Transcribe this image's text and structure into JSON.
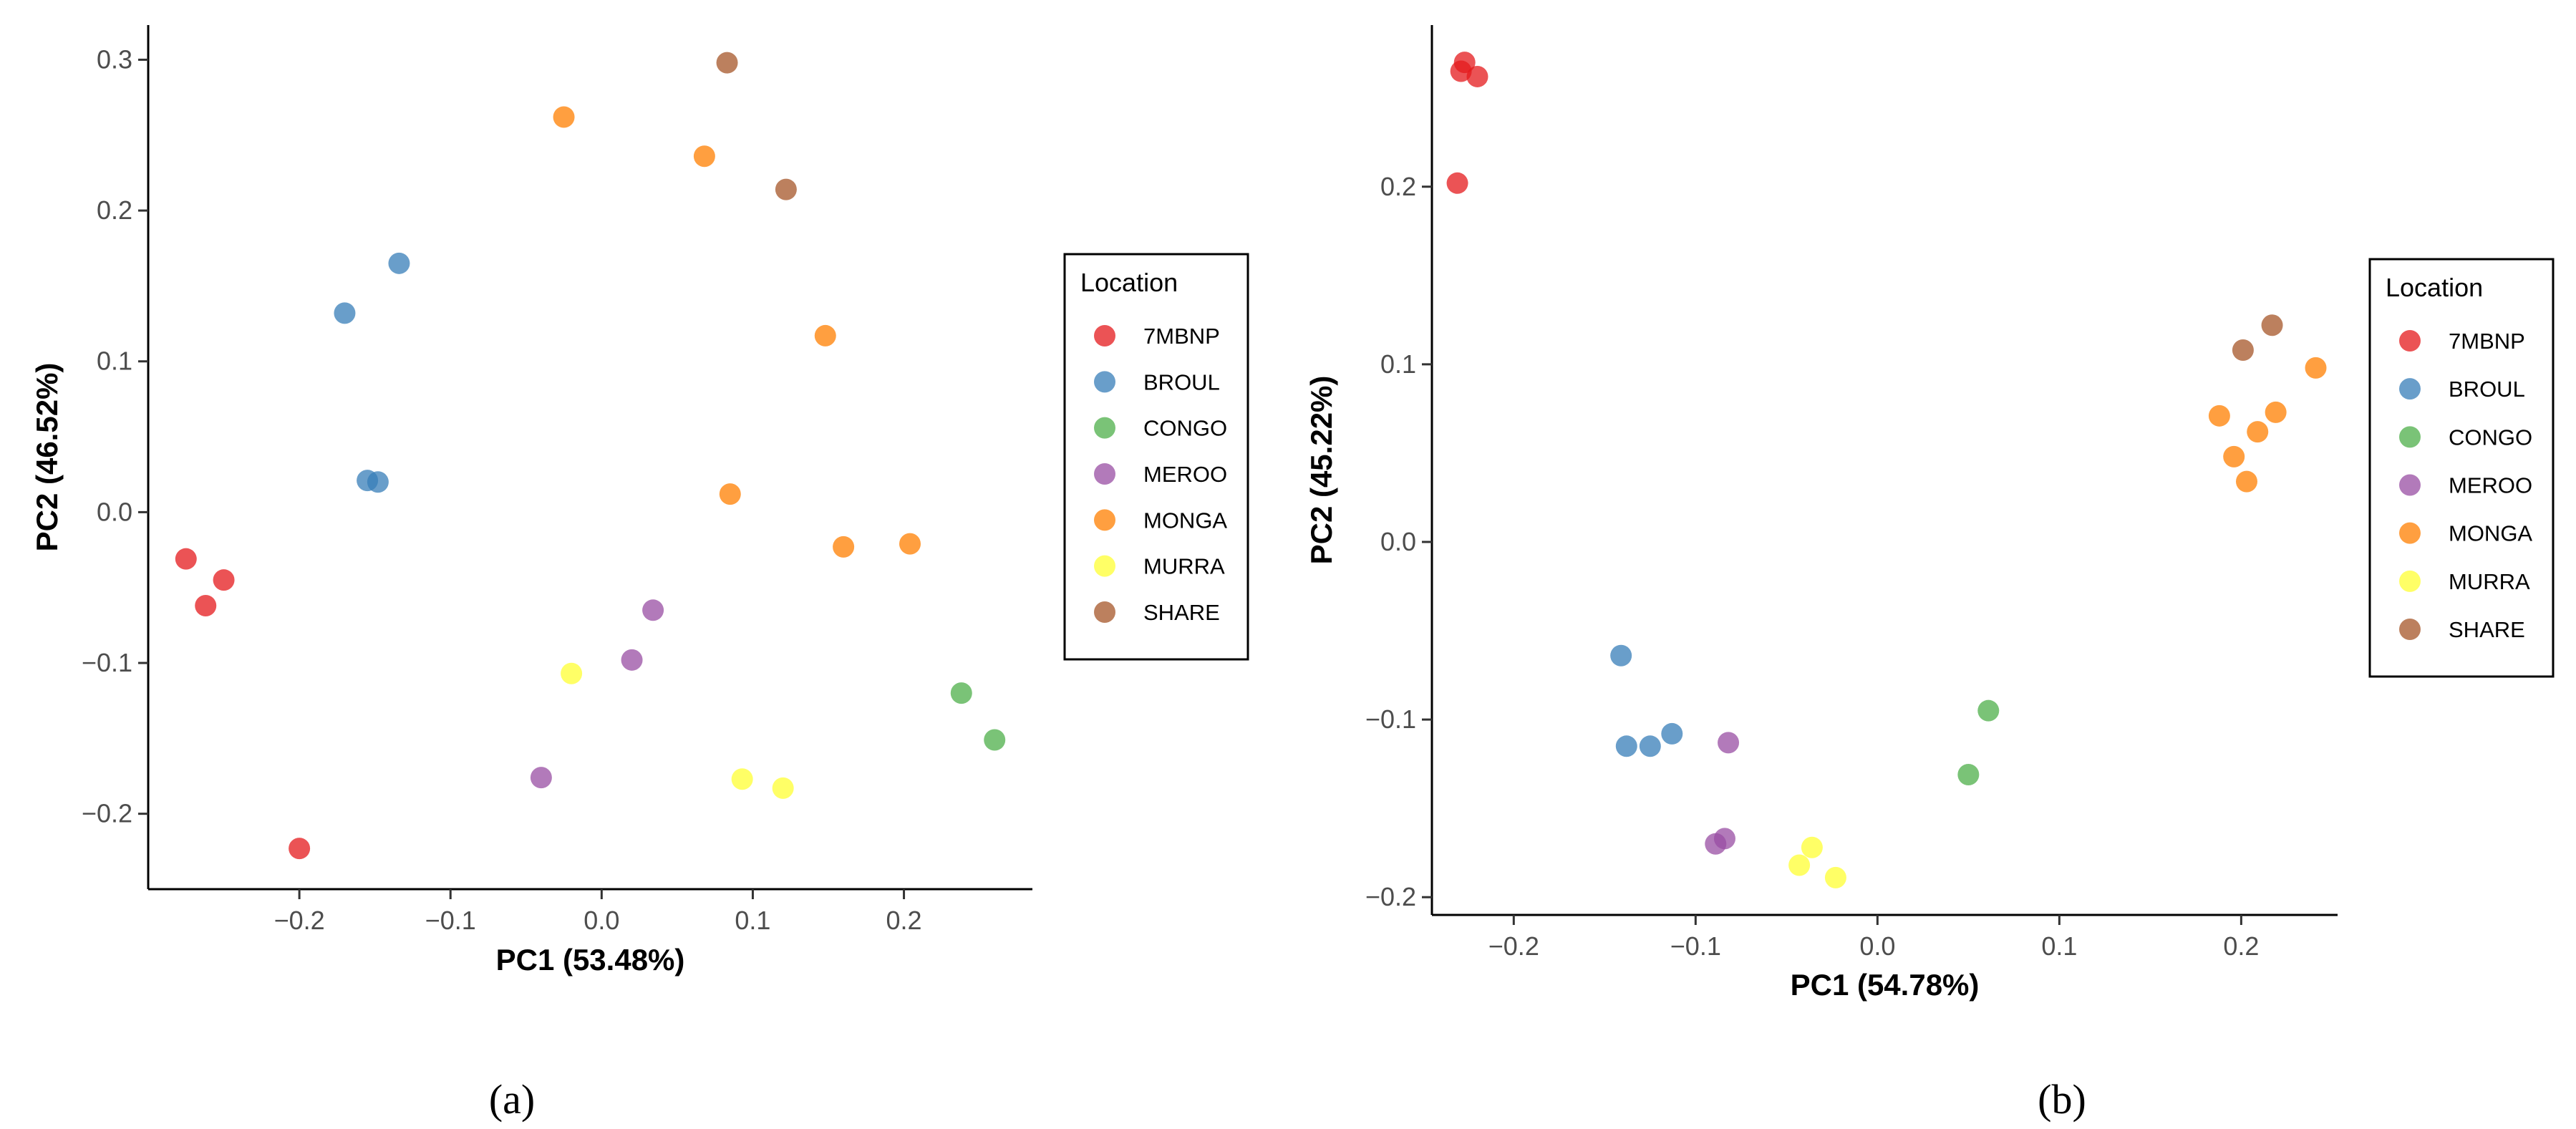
{
  "colors": {
    "7MBNP": "#e41a1c",
    "BROUL": "#377eb8",
    "CONGO": "#4daf4a",
    "MEROO": "#984ea3",
    "MONGA": "#ff7f00",
    "MURRA": "#ffff33",
    "SHARE": "#a65628"
  },
  "chart_data": [
    {
      "type": "scatter",
      "caption": "(a)",
      "xlabel": "PC1 (53.48%)",
      "ylabel": "PC2 (46.52%)",
      "xlim": [
        -0.3,
        0.285
      ],
      "ylim": [
        -0.25,
        0.323
      ],
      "xticks": [
        -0.2,
        -0.1,
        0.0,
        0.1,
        0.2
      ],
      "xtick_labels": [
        "−0.2",
        "−0.1",
        "0.0",
        "0.1",
        "0.2"
      ],
      "yticks": [
        -0.2,
        -0.1,
        0.0,
        0.1,
        0.2,
        0.3
      ],
      "ytick_labels": [
        "−0.2",
        "−0.1",
        "0.0",
        "0.1",
        "0.2",
        "0.3"
      ],
      "legend": {
        "title": "Location",
        "entries": [
          "7MBNP",
          "BROUL",
          "CONGO",
          "MEROO",
          "MONGA",
          "MURRA",
          "SHARE"
        ],
        "position": "right"
      },
      "series": [
        {
          "name": "7MBNP",
          "points": [
            [
              -0.275,
              -0.031
            ],
            [
              -0.25,
              -0.045
            ],
            [
              -0.262,
              -0.062
            ],
            [
              -0.2,
              -0.223
            ]
          ]
        },
        {
          "name": "BROUL",
          "points": [
            [
              -0.134,
              0.165
            ],
            [
              -0.17,
              0.132
            ],
            [
              -0.155,
              0.021
            ],
            [
              -0.148,
              0.02
            ]
          ]
        },
        {
          "name": "CONGO",
          "points": [
            [
              0.238,
              -0.12
            ],
            [
              0.26,
              -0.151
            ]
          ]
        },
        {
          "name": "MEROO",
          "points": [
            [
              0.034,
              -0.065
            ],
            [
              0.02,
              -0.098
            ],
            [
              -0.04,
              -0.176
            ]
          ]
        },
        {
          "name": "MONGA",
          "points": [
            [
              -0.025,
              0.262
            ],
            [
              0.068,
              0.236
            ],
            [
              0.148,
              0.117
            ],
            [
              0.085,
              0.012
            ],
            [
              0.16,
              -0.023
            ],
            [
              0.204,
              -0.021
            ]
          ]
        },
        {
          "name": "MURRA",
          "points": [
            [
              -0.02,
              -0.107
            ],
            [
              0.093,
              -0.177
            ],
            [
              0.12,
              -0.183
            ]
          ]
        },
        {
          "name": "SHARE",
          "points": [
            [
              0.083,
              0.298
            ],
            [
              0.122,
              0.214
            ]
          ]
        }
      ]
    },
    {
      "type": "scatter",
      "caption": "(b)",
      "xlabel": "PC1 (54.78%)",
      "ylabel": "PC2 (45.22%)",
      "xlim": [
        -0.245,
        0.253
      ],
      "ylim": [
        -0.21,
        0.291
      ],
      "xticks": [
        -0.2,
        -0.1,
        0.0,
        0.1,
        0.2
      ],
      "xtick_labels": [
        "−0.2",
        "−0.1",
        "0.0",
        "0.1",
        "0.2"
      ],
      "yticks": [
        -0.2,
        -0.1,
        0.0,
        0.1,
        0.2
      ],
      "ytick_labels": [
        "−0.2",
        "−0.1",
        "0.0",
        "0.1",
        "0.2"
      ],
      "legend": {
        "title": "Location",
        "entries": [
          "7MBNP",
          "BROUL",
          "CONGO",
          "MEROO",
          "MONGA",
          "MURRA",
          "SHARE"
        ],
        "position": "right"
      },
      "series": [
        {
          "name": "7MBNP",
          "points": [
            [
              -0.227,
              0.27
            ],
            [
              -0.229,
              0.265
            ],
            [
              -0.22,
              0.262
            ],
            [
              -0.231,
              0.202
            ]
          ]
        },
        {
          "name": "BROUL",
          "points": [
            [
              -0.141,
              -0.064
            ],
            [
              -0.138,
              -0.115
            ],
            [
              -0.125,
              -0.115
            ],
            [
              -0.113,
              -0.108
            ]
          ]
        },
        {
          "name": "CONGO",
          "points": [
            [
              0.061,
              -0.095
            ],
            [
              0.05,
              -0.131
            ]
          ]
        },
        {
          "name": "MEROO",
          "points": [
            [
              -0.082,
              -0.113
            ],
            [
              -0.084,
              -0.167
            ],
            [
              -0.089,
              -0.17
            ]
          ]
        },
        {
          "name": "MONGA",
          "points": [
            [
              0.241,
              0.098
            ],
            [
              0.188,
              0.071
            ],
            [
              0.219,
              0.073
            ],
            [
              0.209,
              0.062
            ],
            [
              0.196,
              0.048
            ],
            [
              0.203,
              0.034
            ]
          ]
        },
        {
          "name": "MURRA",
          "points": [
            [
              -0.036,
              -0.172
            ],
            [
              -0.043,
              -0.182
            ],
            [
              -0.023,
              -0.189
            ]
          ]
        },
        {
          "name": "SHARE",
          "points": [
            [
              0.217,
              0.122
            ],
            [
              0.201,
              0.108
            ]
          ]
        }
      ]
    }
  ]
}
